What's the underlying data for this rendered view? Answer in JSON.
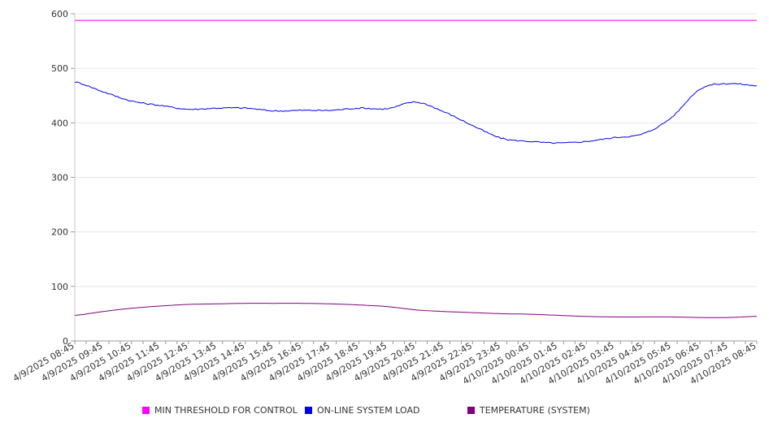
{
  "chart_data": {
    "type": "line",
    "title": "",
    "xlabel": "",
    "ylabel": "",
    "ylim": [
      0,
      600
    ],
    "y_ticks": [
      "0",
      "100",
      "200",
      "300",
      "400",
      "500",
      "600"
    ],
    "grid": "horizontal",
    "legend_position": "bottom",
    "categories": [
      "4/9/2025 08:45",
      "4/9/2025 09:45",
      "4/9/2025 10:45",
      "4/9/2025 11:45",
      "4/9/2025 12:45",
      "4/9/2025 13:45",
      "4/9/2025 14:45",
      "4/9/2025 15:45",
      "4/9/2025 16:45",
      "4/9/2025 17:45",
      "4/9/2025 18:45",
      "4/9/2025 19:45",
      "4/9/2025 20:45",
      "4/9/2025 21:45",
      "4/9/2025 22:45",
      "4/9/2025 23:45",
      "4/10/2025 00:45",
      "4/10/2025 01:45",
      "4/10/2025 02:45",
      "4/10/2025 03:45",
      "4/10/2025 04:45",
      "4/10/2025 05:45",
      "4/10/2025 06:45",
      "4/10/2025 07:45",
      "4/10/2025 08:45"
    ],
    "series": [
      {
        "name": "MIN THRESHOLD FOR CONTROL",
        "color": "#ff00ff",
        "values": [
          588,
          588,
          588,
          588,
          588,
          588,
          588,
          588,
          588,
          588,
          588,
          588,
          588,
          588,
          588,
          588,
          588,
          588,
          588,
          588,
          588,
          588,
          588,
          588,
          588
        ]
      },
      {
        "name": "ON-LINE SYSTEM LOAD",
        "color": "#0000ee",
        "values": [
          475,
          457,
          440,
          432,
          425,
          427,
          427,
          422,
          423,
          423,
          427,
          426,
          438,
          420,
          395,
          372,
          366,
          363,
          366,
          373,
          380,
          410,
          462,
          472,
          468
        ]
      },
      {
        "name": "TEMPERATURE (SYSTEM)",
        "color": "#800080",
        "values": [
          47,
          54,
          60,
          64,
          67,
          68,
          69,
          69,
          69,
          68,
          66,
          63,
          57,
          54,
          52,
          50,
          49,
          47,
          45,
          44,
          44,
          44,
          43,
          43,
          45
        ]
      }
    ]
  }
}
